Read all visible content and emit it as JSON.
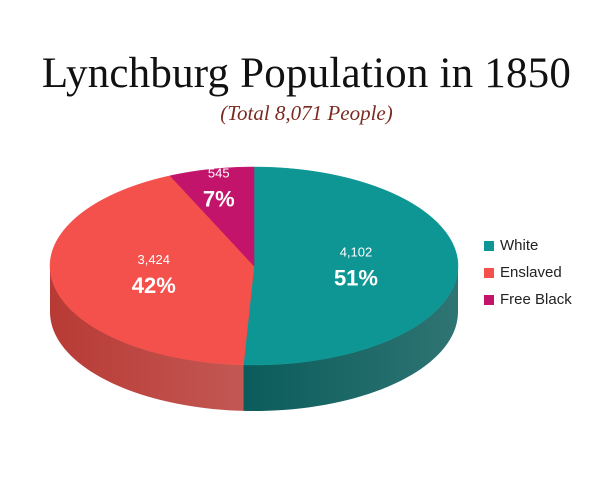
{
  "chart_data": {
    "type": "pie",
    "title": "Lynchburg Population in 1850",
    "subtitle": "(Total 8,071 People)",
    "slices": [
      {
        "label": "White",
        "value": 4102,
        "value_label": "4,102",
        "percent_label": "51%",
        "color": "#0d9693",
        "side_color": "#0a5c5b"
      },
      {
        "label": "Enslaved",
        "value": 3424,
        "value_label": "3,424",
        "percent_label": "42%",
        "color": "#f4504c",
        "side_color": "#b83a35"
      },
      {
        "label": "Free Black",
        "value": 545,
        "value_label": "545",
        "percent_label": "7%",
        "color": "#c2146b",
        "side_color": "#8a0f4c"
      }
    ],
    "legend_position": "right",
    "style": "3d-pie"
  }
}
